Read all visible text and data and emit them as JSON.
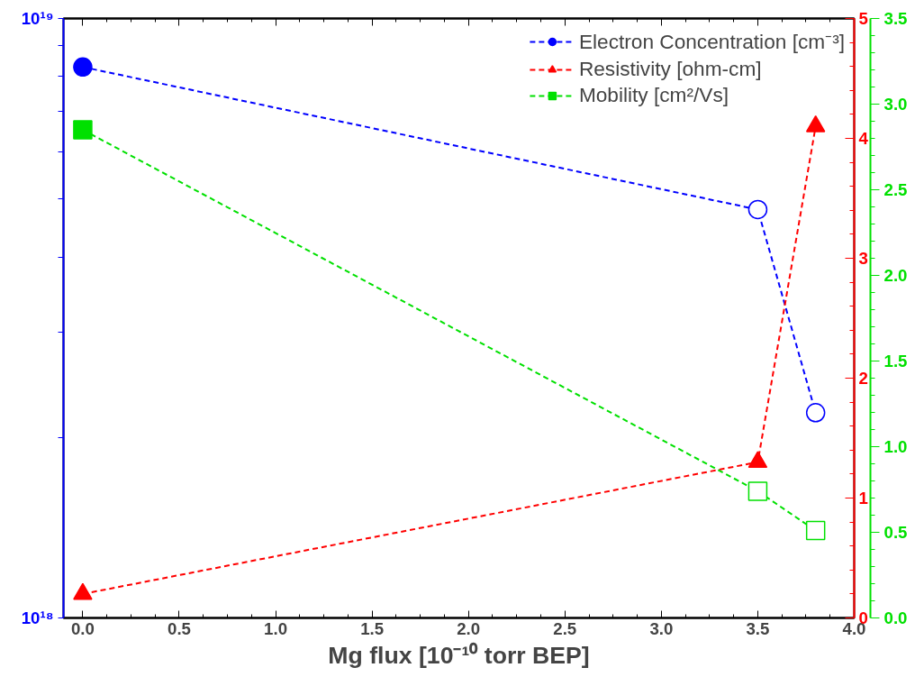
{
  "chart_data": {
    "type": "line",
    "xlabel": "Mg flux [10⁻¹⁰ torr BEP]",
    "x": [
      0.0,
      3.5,
      3.8
    ],
    "xlim": [
      -0.1,
      4.0
    ],
    "xticks": [
      {
        "value": 0.0,
        "label": "0.0"
      },
      {
        "value": 0.5,
        "label": "0.5"
      },
      {
        "value": 1.0,
        "label": "1.0"
      },
      {
        "value": 1.5,
        "label": "1.5"
      },
      {
        "value": 2.0,
        "label": "2.0"
      },
      {
        "value": 2.5,
        "label": "2.5"
      },
      {
        "value": 3.0,
        "label": "3.0"
      },
      {
        "value": 3.5,
        "label": "3.5"
      },
      {
        "value": 4.0,
        "label": "4.0"
      }
    ],
    "log": "y",
    "ylim": [
      1e+18,
      1e+19
    ],
    "yticks": [
      {
        "value": 1e+18,
        "label": "10¹⁸"
      },
      {
        "value": 2e+18,
        "label": null
      },
      {
        "value": 3e+18,
        "label": null
      },
      {
        "value": 4e+18,
        "label": null
      },
      {
        "value": 5e+18,
        "label": null
      },
      {
        "value": 6e+18,
        "label": null
      },
      {
        "value": 7e+18,
        "label": null
      },
      {
        "value": 8e+18,
        "label": null
      },
      {
        "value": 9e+18,
        "label": null
      },
      {
        "value": 1e+19,
        "label": "10¹⁹"
      }
    ],
    "y2lim": [
      0,
      5
    ],
    "y2ticks": [
      0,
      1,
      2,
      3,
      4,
      5
    ],
    "y3lim": [
      0.0,
      3.5
    ],
    "y3ticks": [
      {
        "value": 0.0,
        "label": "0.0"
      },
      {
        "value": 0.5,
        "label": "0.5"
      },
      {
        "value": 1.0,
        "label": "1.0"
      },
      {
        "value": 1.5,
        "label": "1.5"
      },
      {
        "value": 2.0,
        "label": "2.0"
      },
      {
        "value": 2.5,
        "label": "2.5"
      },
      {
        "value": 3.0,
        "label": "3.0"
      },
      {
        "value": 3.5,
        "label": "3.5"
      }
    ],
    "line_style": "dashed",
    "legend": "top right",
    "grid": false,
    "series": [
      {
        "name": "Electron Concentration [cm⁻³]",
        "color": "#0000ff",
        "marker": "circle",
        "colors": [
          "#0000ff",
          "#ffffff",
          "#ffffff"
        ],
        "values": [
          8.3e+18,
          4.8e+18,
          2.2e+18
        ]
      },
      {
        "name": "Resistivity [ohm-cm]",
        "color": "#ff0000",
        "marker": "triangle",
        "axis": "y2",
        "values": [
          0.2,
          1.3,
          4.1
        ]
      },
      {
        "name": "Mobility [cm²/Vs]",
        "color": "#00e000",
        "marker": "square",
        "axis": "y3",
        "colors": [
          "#00e000",
          "#ffffff",
          "#ffffff"
        ],
        "values": [
          2.85,
          0.74,
          0.51
        ]
      }
    ]
  }
}
